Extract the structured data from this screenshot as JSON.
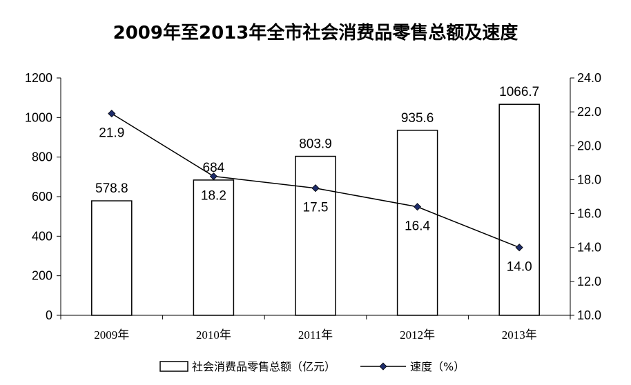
{
  "chart_data": {
    "type": "bar",
    "title": "2009年至2013年全市社会消费品零售总额及速度",
    "categories": [
      "2009年",
      "2010年",
      "2011年",
      "2012年",
      "2013年"
    ],
    "series": [
      {
        "name": "社会消费品零售总额（亿元）",
        "type": "bar",
        "axis": "left",
        "values": [
          578.8,
          684,
          803.9,
          935.6,
          1066.7
        ],
        "labels": [
          "578.8",
          "684",
          "803.9",
          "935.6",
          "1066.7"
        ]
      },
      {
        "name": "速度（%）",
        "type": "line",
        "axis": "right",
        "values": [
          21.9,
          18.2,
          17.5,
          16.4,
          14.0
        ],
        "labels": [
          "21.9",
          "18.2",
          "17.5",
          "16.4",
          "14.0"
        ]
      }
    ],
    "y_left": {
      "ylim": [
        0,
        1200
      ],
      "ticks": [
        "0",
        "200",
        "400",
        "600",
        "800",
        "1000",
        "1200"
      ]
    },
    "y_right": {
      "ylim": [
        10,
        24
      ],
      "ticks": [
        "10.0",
        "12.0",
        "14.0",
        "16.0",
        "18.0",
        "20.0",
        "22.0",
        "24.0"
      ]
    },
    "grid": false,
    "legend_position": "bottom",
    "colors": {
      "bar_fill": "#ffffff",
      "bar_stroke": "#000000",
      "line": "#000000",
      "marker": "#1f2d6b"
    }
  }
}
